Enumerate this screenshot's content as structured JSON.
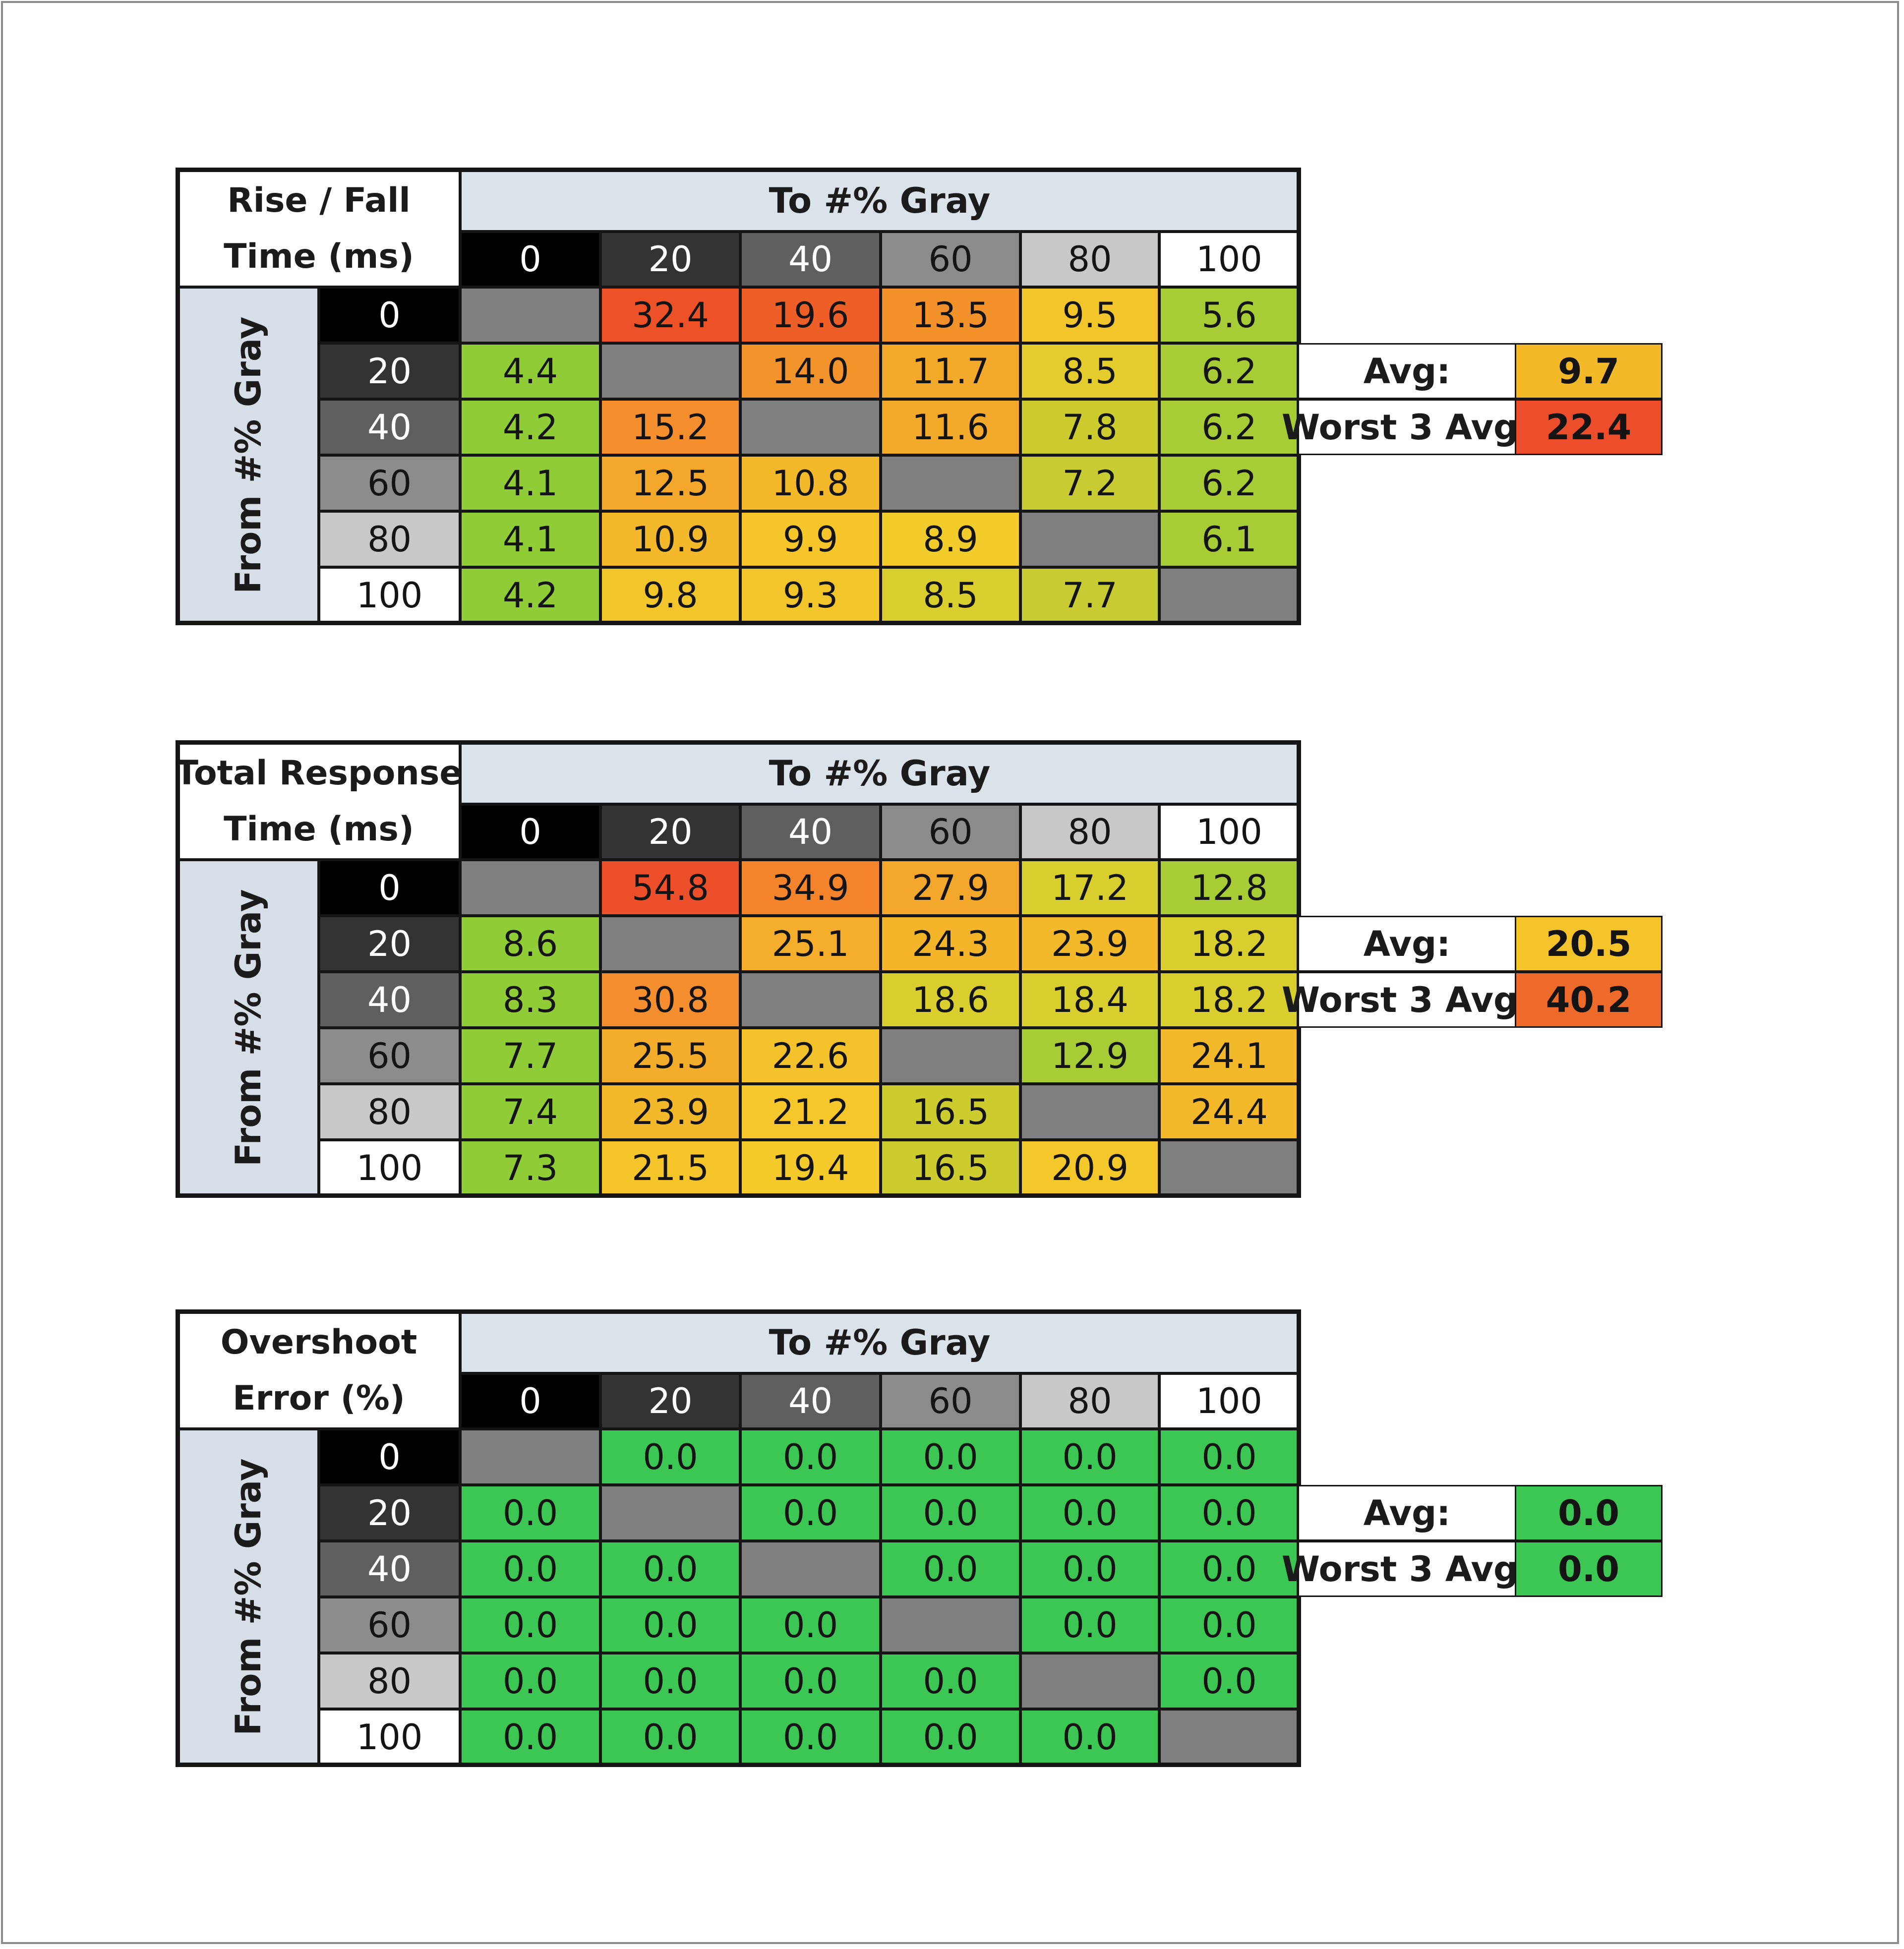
{
  "chart_data": [
    {
      "type": "heatmap",
      "title_lines": [
        "Rise / Fall",
        "Time (ms)"
      ],
      "column_header": "To #% Gray",
      "row_header": "From #% Gray",
      "levels": [
        "0",
        "20",
        "40",
        "60",
        "80",
        "100"
      ],
      "cells": [
        [
          null,
          32.4,
          19.6,
          13.5,
          9.5,
          5.6
        ],
        [
          4.4,
          null,
          14.0,
          11.7,
          8.5,
          6.2
        ],
        [
          4.2,
          15.2,
          null,
          11.6,
          7.8,
          6.2
        ],
        [
          4.1,
          12.5,
          10.8,
          null,
          7.2,
          6.2
        ],
        [
          4.1,
          10.9,
          9.9,
          8.9,
          null,
          6.1
        ],
        [
          4.2,
          9.8,
          9.3,
          8.5,
          7.7,
          null
        ]
      ],
      "cell_colors": [
        [
          "#7f7f7f",
          "#ec5128",
          "#ee5f27",
          "#f3922a",
          "#f2c62a",
          "#a8cc35"
        ],
        [
          "#8fcc35",
          "#7f7f7f",
          "#f3932b",
          "#f3aa2b",
          "#e5cc2d",
          "#a8cc35"
        ],
        [
          "#8fcc35",
          "#f58f2e",
          "#7f7f7f",
          "#f3aa2b",
          "#cdcc2f",
          "#a8cc35"
        ],
        [
          "#8fcc35",
          "#f4a82b",
          "#f4b92a",
          "#7f7f7f",
          "#c8cb31",
          "#a8cc35"
        ],
        [
          "#8fcc35",
          "#f4b92a",
          "#f5c52a",
          "#f1cc2a",
          "#7f7f7f",
          "#a8cc35"
        ],
        [
          "#8fcc35",
          "#f2c62a",
          "#f2c62a",
          "#dacd2e",
          "#c8cb31",
          "#7f7f7f"
        ]
      ],
      "avg_label": "Avg:",
      "avg_value": "9.7",
      "avg_color": "#f4b928",
      "worst_label": "Worst 3 Avg:",
      "worst_value": "22.4",
      "worst_color": "#ec4e2b"
    },
    {
      "type": "heatmap",
      "title_lines": [
        "Total Response",
        "Time (ms)"
      ],
      "column_header": "To #% Gray",
      "row_header": "From #% Gray",
      "levels": [
        "0",
        "20",
        "40",
        "60",
        "80",
        "100"
      ],
      "cells": [
        [
          null,
          54.8,
          34.9,
          27.9,
          17.2,
          12.8
        ],
        [
          8.6,
          null,
          25.1,
          24.3,
          23.9,
          18.2
        ],
        [
          8.3,
          30.8,
          null,
          18.6,
          18.4,
          18.2
        ],
        [
          7.7,
          25.5,
          22.6,
          null,
          12.9,
          24.1
        ],
        [
          7.4,
          23.9,
          21.2,
          16.5,
          null,
          24.4
        ],
        [
          7.3,
          21.5,
          19.4,
          16.5,
          20.9,
          null
        ]
      ],
      "cell_colors": [
        [
          "#7f7f7f",
          "#ec4f2a",
          "#f4842b",
          "#f3a72b",
          "#d8ce2e",
          "#a8cc35"
        ],
        [
          "#8fcc35",
          "#7f7f7f",
          "#f4ae2b",
          "#f4b52b",
          "#f3b92a",
          "#d8ce2e"
        ],
        [
          "#8fcc35",
          "#f48e2e",
          "#7f7f7f",
          "#d8ce2e",
          "#d8ce2e",
          "#d8ce2e"
        ],
        [
          "#8fcc35",
          "#f4ac2b",
          "#f4c22a",
          "#7f7f7f",
          "#a8cc35",
          "#f3b92a"
        ],
        [
          "#8fcc35",
          "#f4b92a",
          "#f5c72a",
          "#cccc2f",
          "#7f7f7f",
          "#f3b92a"
        ],
        [
          "#8fcc35",
          "#f5c52a",
          "#f4cb2b",
          "#cccc2f",
          "#f4c72a",
          "#7f7f7f"
        ]
      ],
      "avg_label": "Avg:",
      "avg_value": "20.5",
      "avg_color": "#f4c42a",
      "worst_label": "Worst 3 Avg:",
      "worst_value": "40.2",
      "worst_color": "#ee6a2a"
    },
    {
      "type": "heatmap",
      "title_lines": [
        "Overshoot",
        "Error (%)"
      ],
      "column_header": "To #% Gray",
      "row_header": "From #% Gray",
      "levels": [
        "0",
        "20",
        "40",
        "60",
        "80",
        "100"
      ],
      "cells": [
        [
          null,
          0.0,
          0.0,
          0.0,
          0.0,
          0.0
        ],
        [
          0.0,
          null,
          0.0,
          0.0,
          0.0,
          0.0
        ],
        [
          0.0,
          0.0,
          null,
          0.0,
          0.0,
          0.0
        ],
        [
          0.0,
          0.0,
          0.0,
          null,
          0.0,
          0.0
        ],
        [
          0.0,
          0.0,
          0.0,
          0.0,
          null,
          0.0
        ],
        [
          0.0,
          0.0,
          0.0,
          0.0,
          0.0,
          null
        ]
      ],
      "cell_colors": [
        [
          "#7f7f7f",
          "#3cc653",
          "#3cc653",
          "#3cc653",
          "#3cc653",
          "#3cc653"
        ],
        [
          "#3cc653",
          "#7f7f7f",
          "#3cc653",
          "#3cc653",
          "#3cc653",
          "#3cc653"
        ],
        [
          "#3cc653",
          "#3cc653",
          "#7f7f7f",
          "#3cc653",
          "#3cc653",
          "#3cc653"
        ],
        [
          "#3cc653",
          "#3cc653",
          "#3cc653",
          "#7f7f7f",
          "#3cc653",
          "#3cc653"
        ],
        [
          "#3cc653",
          "#3cc653",
          "#3cc653",
          "#3cc653",
          "#7f7f7f",
          "#3cc653"
        ],
        [
          "#3cc653",
          "#3cc653",
          "#3cc653",
          "#3cc653",
          "#3cc653",
          "#7f7f7f"
        ]
      ],
      "avg_label": "Avg:",
      "avg_value": "0.0",
      "avg_color": "#3cc653",
      "worst_label": "Worst 3 Avg:",
      "worst_value": "0.0",
      "worst_color": "#3cc653"
    }
  ],
  "level_colors": {
    "0": "#000000",
    "20": "#333333",
    "40": "#5f5f5f",
    "60": "#8c8c8c",
    "80": "#c8c8c8",
    "100": "#ffffff"
  },
  "level_text_colors": {
    "0": "#ffffff",
    "20": "#ffffff",
    "40": "#ffffff",
    "60": "#141414",
    "80": "#141414",
    "100": "#141414"
  }
}
